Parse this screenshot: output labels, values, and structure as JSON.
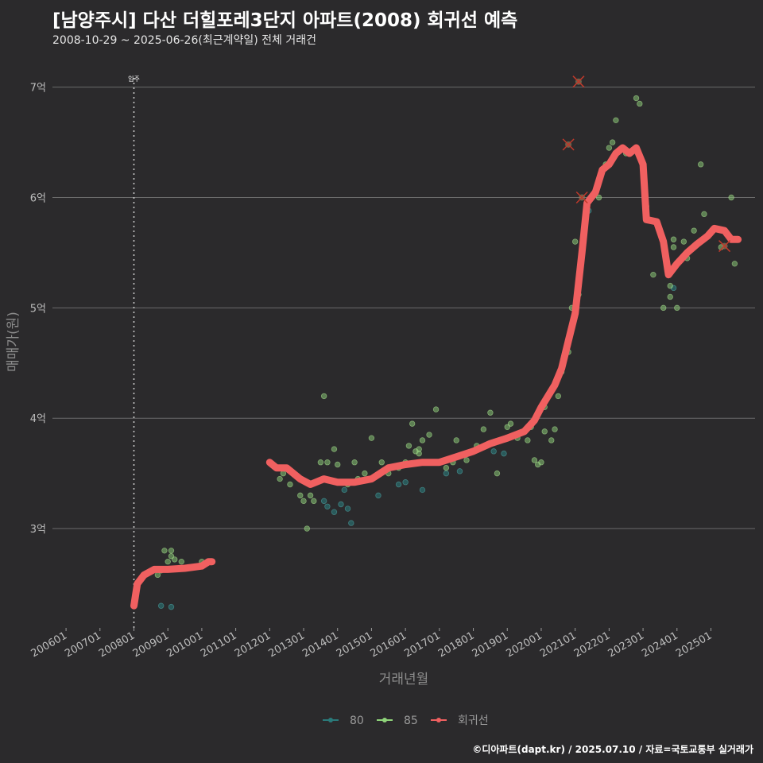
{
  "header": {
    "title": "[남양주시] 다산 더힐포레3단지 아파트(2008) 회귀선 예측",
    "subtitle": "2008-10-29 ~ 2025-06-26(최근계약일) 전체 거래건"
  },
  "footer": {
    "caption": "©디아파트(dapt.kr) / 2025.07.10 / 자료=국토교통부 실거래가"
  },
  "colors": {
    "background": "#2b2a2c",
    "grid": "#6b6b6b",
    "series_80": "#2a7a7a",
    "series_85": "#8fd47a",
    "regression": "#f06060",
    "outlier_marker": "#c0392b"
  },
  "chart_data": {
    "type": "scatter",
    "xlabel": "거래년월",
    "ylabel": "매매가(원)",
    "xlim": [
      2005.6,
      2026.3
    ],
    "ylim": [
      2.1,
      7.3
    ],
    "x_ticks": [
      "200601",
      "200701",
      "200801",
      "200901",
      "201001",
      "201101",
      "201201",
      "201301",
      "201401",
      "201501",
      "201601",
      "201701",
      "201801",
      "201901",
      "202001",
      "202101",
      "202201",
      "202301",
      "202401",
      "202501"
    ],
    "y_ticks": [
      {
        "value": 3,
        "label": "3억"
      },
      {
        "value": 4,
        "label": "4억"
      },
      {
        "value": 5,
        "label": "5억"
      },
      {
        "value": 6,
        "label": "6억"
      },
      {
        "value": 7,
        "label": "7억"
      }
    ],
    "annotation": {
      "x": 2008.0,
      "label": "입주"
    },
    "legend": {
      "position": "bottom",
      "entries": [
        {
          "key": "80",
          "label": "80"
        },
        {
          "key": "85",
          "label": "85"
        },
        {
          "key": "reg",
          "label": "회귀선"
        }
      ]
    },
    "series": [
      {
        "name": "80",
        "points": [
          [
            2008.8,
            2.3
          ],
          [
            2009.1,
            2.29
          ],
          [
            2013.6,
            3.25
          ],
          [
            2013.7,
            3.2
          ],
          [
            2013.9,
            3.15
          ],
          [
            2014.1,
            3.22
          ],
          [
            2014.2,
            3.35
          ],
          [
            2014.3,
            3.18
          ],
          [
            2014.4,
            3.05
          ],
          [
            2015.2,
            3.3
          ],
          [
            2015.8,
            3.4
          ],
          [
            2016.0,
            3.42
          ],
          [
            2016.5,
            3.35
          ],
          [
            2017.2,
            3.5
          ],
          [
            2017.6,
            3.52
          ],
          [
            2018.6,
            3.7
          ],
          [
            2018.9,
            3.68
          ],
          [
            2021.4,
            5.88
          ],
          [
            2023.9,
            5.18
          ]
        ]
      },
      {
        "name": "85",
        "points": [
          [
            2008.7,
            2.58
          ],
          [
            2008.8,
            2.62
          ],
          [
            2008.9,
            2.8
          ],
          [
            2009.0,
            2.7
          ],
          [
            2009.1,
            2.75
          ],
          [
            2009.1,
            2.8
          ],
          [
            2009.2,
            2.72
          ],
          [
            2009.4,
            2.7
          ],
          [
            2009.6,
            2.65
          ],
          [
            2010.0,
            2.7
          ],
          [
            2012.0,
            3.6
          ],
          [
            2012.3,
            3.45
          ],
          [
            2012.4,
            3.5
          ],
          [
            2012.6,
            3.4
          ],
          [
            2012.9,
            3.3
          ],
          [
            2013.0,
            3.25
          ],
          [
            2013.1,
            3.0
          ],
          [
            2013.2,
            3.3
          ],
          [
            2013.3,
            3.25
          ],
          [
            2013.5,
            3.6
          ],
          [
            2013.6,
            4.2
          ],
          [
            2013.7,
            3.6
          ],
          [
            2013.9,
            3.72
          ],
          [
            2014.0,
            3.58
          ],
          [
            2014.3,
            3.4
          ],
          [
            2014.5,
            3.6
          ],
          [
            2014.6,
            3.45
          ],
          [
            2014.8,
            3.5
          ],
          [
            2015.0,
            3.82
          ],
          [
            2015.3,
            3.6
          ],
          [
            2015.5,
            3.5
          ],
          [
            2015.8,
            3.55
          ],
          [
            2016.0,
            3.6
          ],
          [
            2016.1,
            3.75
          ],
          [
            2016.2,
            3.95
          ],
          [
            2016.3,
            3.7
          ],
          [
            2016.4,
            3.72
          ],
          [
            2016.5,
            3.8
          ],
          [
            2016.7,
            3.85
          ],
          [
            2016.9,
            4.08
          ],
          [
            2017.0,
            3.6
          ],
          [
            2017.2,
            3.55
          ],
          [
            2017.5,
            3.8
          ],
          [
            2017.8,
            3.62
          ],
          [
            2018.0,
            3.7
          ],
          [
            2018.3,
            3.9
          ],
          [
            2018.5,
            4.05
          ],
          [
            2018.7,
            3.5
          ],
          [
            2019.0,
            3.92
          ],
          [
            2019.1,
            3.95
          ],
          [
            2019.3,
            3.82
          ],
          [
            2019.6,
            3.8
          ],
          [
            2019.8,
            3.62
          ],
          [
            2019.9,
            3.58
          ],
          [
            2020.0,
            3.6
          ],
          [
            2020.1,
            3.88
          ],
          [
            2020.1,
            4.1
          ],
          [
            2020.3,
            3.8
          ],
          [
            2020.4,
            3.9
          ],
          [
            2020.6,
            4.42
          ],
          [
            2020.8,
            4.6
          ],
          [
            2020.9,
            5.0
          ],
          [
            2021.0,
            5.6
          ],
          [
            2021.3,
            5.8
          ],
          [
            2021.7,
            6.0
          ],
          [
            2021.9,
            6.3
          ],
          [
            2022.0,
            6.45
          ],
          [
            2022.1,
            6.5
          ],
          [
            2022.2,
            6.7
          ],
          [
            2022.5,
            6.4
          ],
          [
            2022.8,
            6.9
          ],
          [
            2022.9,
            6.85
          ],
          [
            2023.1,
            5.92
          ],
          [
            2023.3,
            5.3
          ],
          [
            2023.8,
            5.2
          ],
          [
            2023.9,
            5.55
          ],
          [
            2024.0,
            5.0
          ],
          [
            2024.3,
            5.45
          ],
          [
            2024.5,
            5.7
          ],
          [
            2024.7,
            6.3
          ],
          [
            2024.8,
            5.85
          ],
          [
            2025.3,
            5.55
          ],
          [
            2025.6,
            6.0
          ],
          [
            2025.7,
            5.4
          ],
          [
            2021.1,
            5.12
          ],
          [
            2023.8,
            5.1
          ],
          [
            2023.6,
            5.0
          ],
          [
            2023.9,
            5.62
          ],
          [
            2024.2,
            5.6
          ],
          [
            2020.5,
            4.2
          ],
          [
            2019.7,
            3.92
          ],
          [
            2018.1,
            3.75
          ],
          [
            2017.4,
            3.6
          ],
          [
            2016.4,
            3.68
          ]
        ]
      },
      {
        "name": "회귀선",
        "points": [
          [
            2008.0,
            2.3
          ],
          [
            2008.1,
            2.5
          ],
          [
            2008.3,
            2.58
          ],
          [
            2008.6,
            2.63
          ],
          [
            2009.0,
            2.63
          ],
          [
            2009.5,
            2.64
          ],
          [
            2010.0,
            2.66
          ],
          [
            2010.2,
            2.7
          ],
          [
            2010.3,
            2.7
          ],
          [
            2012.0,
            3.6
          ],
          [
            2012.2,
            3.55
          ],
          [
            2012.5,
            3.55
          ],
          [
            2012.9,
            3.45
          ],
          [
            2013.2,
            3.4
          ],
          [
            2013.6,
            3.45
          ],
          [
            2014.0,
            3.42
          ],
          [
            2014.5,
            3.42
          ],
          [
            2015.0,
            3.45
          ],
          [
            2015.5,
            3.55
          ],
          [
            2016.0,
            3.58
          ],
          [
            2016.5,
            3.6
          ],
          [
            2017.0,
            3.6
          ],
          [
            2017.5,
            3.65
          ],
          [
            2018.0,
            3.7
          ],
          [
            2018.5,
            3.77
          ],
          [
            2019.0,
            3.82
          ],
          [
            2019.5,
            3.88
          ],
          [
            2019.8,
            3.98
          ],
          [
            2020.0,
            4.1
          ],
          [
            2020.2,
            4.2
          ],
          [
            2020.4,
            4.3
          ],
          [
            2020.6,
            4.45
          ],
          [
            2020.8,
            4.7
          ],
          [
            2021.0,
            4.95
          ],
          [
            2021.2,
            5.5
          ],
          [
            2021.35,
            5.95
          ],
          [
            2021.6,
            6.05
          ],
          [
            2021.8,
            6.25
          ],
          [
            2022.0,
            6.3
          ],
          [
            2022.2,
            6.4
          ],
          [
            2022.4,
            6.45
          ],
          [
            2022.6,
            6.4
          ],
          [
            2022.8,
            6.45
          ],
          [
            2023.0,
            6.3
          ],
          [
            2023.1,
            5.8
          ],
          [
            2023.4,
            5.78
          ],
          [
            2023.6,
            5.6
          ],
          [
            2023.75,
            5.3
          ],
          [
            2024.0,
            5.4
          ],
          [
            2024.3,
            5.5
          ],
          [
            2024.6,
            5.58
          ],
          [
            2024.9,
            5.65
          ],
          [
            2025.1,
            5.72
          ],
          [
            2025.4,
            5.7
          ],
          [
            2025.6,
            5.62
          ],
          [
            2025.8,
            5.62
          ]
        ]
      }
    ],
    "outliers": [
      [
        2021.1,
        7.05
      ],
      [
        2020.8,
        6.48
      ],
      [
        2021.2,
        6.0
      ],
      [
        2025.4,
        5.56
      ]
    ]
  }
}
